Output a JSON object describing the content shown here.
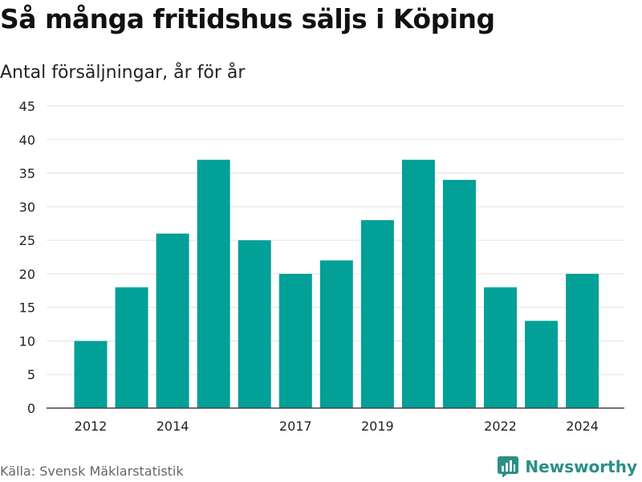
{
  "title": "Så många fritidshus säljs i Köping",
  "subtitle": "Antal försäljningar, år för år",
  "source": "Källa: Svensk Mäklarstatistik",
  "brand": {
    "name": "Newsworthy",
    "icon": "bar-chart-logo-icon",
    "color": "#2a9086"
  },
  "chart_data": {
    "type": "bar",
    "categories": [
      "2012",
      "2013",
      "2014",
      "2015",
      "2016",
      "2017",
      "2018",
      "2019",
      "2020",
      "2021",
      "2022",
      "2023",
      "2024"
    ],
    "values": [
      10,
      18,
      26,
      37,
      25,
      20,
      22,
      28,
      37,
      34,
      18,
      13,
      20
    ],
    "x_tick_labels": [
      "2012",
      "2014",
      "2017",
      "2019",
      "2022",
      "2024"
    ],
    "y_ticks": [
      0,
      5,
      10,
      15,
      20,
      25,
      30,
      35,
      40,
      45
    ],
    "ylim": [
      0,
      45
    ],
    "bar_color": "#02a097",
    "grid": true,
    "legend": false
  }
}
